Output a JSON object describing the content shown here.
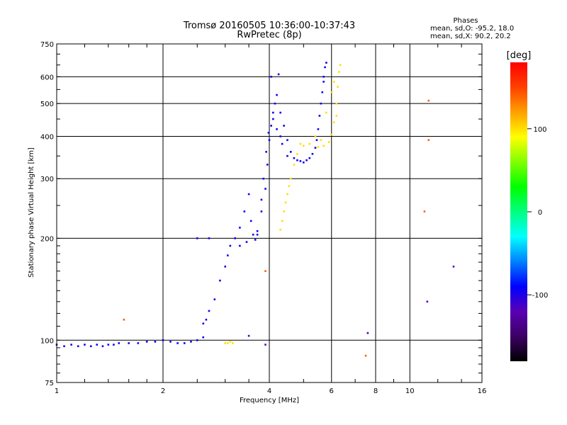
{
  "chart_data": {
    "type": "scatter",
    "title": "Tromsø 20160505 10:36:00-10:37:43",
    "subtitle": "RwPretec (8p)",
    "xlabel": "Frequency [MHz]",
    "ylabel": "Stationary phase Virtual Height [km]",
    "x_scale": "log",
    "y_scale": "log",
    "xlim": [
      1,
      16
    ],
    "ylim": [
      75,
      750
    ],
    "x_ticks": [
      1,
      2,
      4,
      6,
      8,
      10,
      16
    ],
    "y_ticks": [
      75,
      100,
      200,
      300,
      400,
      500,
      600,
      750
    ],
    "x_gridlines": [
      2,
      4,
      6,
      8,
      10
    ],
    "y_gridlines": [
      100,
      200,
      300,
      400,
      500,
      600
    ],
    "grid": true,
    "phase_header": "Phases",
    "stats": [
      "mean, sd,O: -95.2, 18.0",
      "mean, sd,X:  90.2, 20.2"
    ],
    "colorbar": {
      "label": "[deg]",
      "min": -180,
      "max": 180,
      "ticks": [
        100,
        0,
        -100
      ],
      "colors": [
        "#000000",
        "#3c0064",
        "#5a00b4",
        "#0000ff",
        "#0080ff",
        "#00ffff",
        "#00ff80",
        "#00ff00",
        "#80ff00",
        "#ffff00",
        "#ffa000",
        "#ff4000",
        "#ff0000"
      ]
    },
    "series": [
      {
        "mode": "O",
        "phase_deg": -95,
        "points": [
          [
            1.0,
            97
          ],
          [
            1.05,
            96
          ],
          [
            1.1,
            97
          ],
          [
            1.15,
            96
          ],
          [
            1.2,
            97
          ],
          [
            1.25,
            96
          ],
          [
            1.3,
            97
          ],
          [
            1.35,
            96
          ],
          [
            1.4,
            97
          ],
          [
            1.45,
            97
          ],
          [
            1.5,
            98
          ],
          [
            1.6,
            98
          ],
          [
            1.7,
            98
          ],
          [
            1.8,
            99
          ],
          [
            1.9,
            99
          ],
          [
            2.0,
            100
          ],
          [
            2.1,
            99
          ],
          [
            2.2,
            98
          ],
          [
            2.3,
            98
          ],
          [
            2.4,
            99
          ],
          [
            2.5,
            100
          ],
          [
            2.6,
            102
          ],
          [
            2.6,
            112
          ],
          [
            2.65,
            115
          ],
          [
            2.7,
            122
          ],
          [
            2.8,
            132
          ],
          [
            2.9,
            150
          ],
          [
            3.0,
            165
          ],
          [
            3.05,
            178
          ],
          [
            3.1,
            190
          ],
          [
            3.2,
            200
          ],
          [
            3.3,
            215
          ],
          [
            3.4,
            240
          ],
          [
            3.5,
            270
          ],
          [
            3.55,
            225
          ],
          [
            3.6,
            205
          ],
          [
            3.65,
            198
          ],
          [
            3.7,
            205
          ],
          [
            3.8,
            240
          ],
          [
            3.9,
            280
          ],
          [
            3.95,
            330
          ],
          [
            4.0,
            390
          ],
          [
            4.05,
            430
          ],
          [
            4.1,
            470
          ],
          [
            4.15,
            500
          ],
          [
            4.2,
            530
          ],
          [
            4.3,
            470
          ],
          [
            4.4,
            430
          ],
          [
            4.5,
            390
          ],
          [
            4.6,
            360
          ],
          [
            4.8,
            340
          ],
          [
            5.0,
            335
          ],
          [
            5.2,
            345
          ],
          [
            5.4,
            370
          ],
          [
            5.5,
            420
          ],
          [
            5.6,
            500
          ],
          [
            5.7,
            580
          ],
          [
            5.75,
            640
          ],
          [
            5.8,
            660
          ],
          [
            2.5,
            200
          ],
          [
            2.7,
            200
          ],
          [
            3.3,
            190
          ],
          [
            3.45,
            195
          ],
          [
            3.7,
            210
          ],
          [
            3.8,
            260
          ],
          [
            3.85,
            300
          ],
          [
            3.92,
            360
          ],
          [
            3.98,
            410
          ],
          [
            4.05,
            600
          ],
          [
            4.25,
            610
          ],
          [
            4.1,
            450
          ],
          [
            4.2,
            420
          ],
          [
            4.3,
            400
          ],
          [
            4.35,
            380
          ],
          [
            4.5,
            350
          ],
          [
            4.7,
            345
          ],
          [
            4.9,
            338
          ],
          [
            5.1,
            340
          ],
          [
            5.3,
            355
          ],
          [
            5.45,
            390
          ],
          [
            5.55,
            460
          ],
          [
            5.65,
            540
          ],
          [
            5.7,
            600
          ]
        ]
      },
      {
        "mode": "X",
        "phase_deg": 100,
        "points": [
          [
            3.0,
            98
          ],
          [
            3.05,
            98
          ],
          [
            3.1,
            99
          ],
          [
            3.15,
            98
          ],
          [
            4.3,
            212
          ],
          [
            4.35,
            225
          ],
          [
            4.4,
            240
          ],
          [
            4.45,
            255
          ],
          [
            4.5,
            270
          ],
          [
            4.55,
            285
          ],
          [
            4.6,
            300
          ],
          [
            4.7,
            330
          ],
          [
            4.8,
            355
          ],
          [
            5.0,
            375
          ],
          [
            5.2,
            380
          ],
          [
            5.5,
            372
          ],
          [
            5.7,
            375
          ],
          [
            5.9,
            385
          ],
          [
            6.0,
            405
          ],
          [
            6.1,
            440
          ],
          [
            6.2,
            500
          ],
          [
            6.25,
            560
          ],
          [
            6.3,
            620
          ],
          [
            6.35,
            650
          ],
          [
            5.4,
            400
          ],
          [
            5.6,
            390
          ],
          [
            4.9,
            380
          ],
          [
            5.8,
            470
          ],
          [
            6.2,
            460
          ],
          [
            6.0,
            540
          ],
          [
            6.1,
            580
          ]
        ]
      },
      {
        "mode": "isolated",
        "phase_deg": 140,
        "points": [
          [
            1.55,
            115
          ],
          [
            3.9,
            160
          ],
          [
            7.5,
            90
          ],
          [
            11,
            240
          ],
          [
            11.3,
            510
          ],
          [
            11.3,
            390
          ]
        ]
      },
      {
        "mode": "isolated",
        "phase_deg": -120,
        "points": [
          [
            7.6,
            105
          ],
          [
            11.2,
            130
          ],
          [
            13.3,
            165
          ],
          [
            3.5,
            103
          ],
          [
            3.9,
            97
          ]
        ]
      }
    ]
  }
}
